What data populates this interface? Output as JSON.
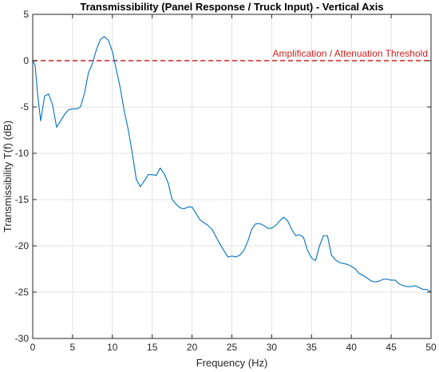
{
  "chart_data": {
    "type": "line",
    "title": "Transmissibility (Panel Response / Truck Input) - Vertical Axis",
    "xlabel": "Frequency (Hz)",
    "ylabel": "Transmissibility T(f) (dB)",
    "xlim": [
      0,
      50
    ],
    "ylim": [
      -30,
      5
    ],
    "xticks": [
      0,
      5,
      10,
      15,
      20,
      25,
      30,
      35,
      40,
      45,
      50
    ],
    "yticks": [
      -30,
      -25,
      -20,
      -15,
      -10,
      -5,
      0,
      5
    ],
    "grid": true,
    "series": [
      {
        "color": "#0072bd",
        "x": [
          0,
          0.3,
          0.6,
          1.0,
          1.5,
          2.0,
          2.5,
          3.0,
          3.5,
          4.0,
          4.5,
          5.0,
          5.5,
          6.0,
          6.5,
          7.0,
          7.5,
          8.0,
          8.5,
          9.0,
          9.5,
          10.0,
          10.5,
          11.0,
          11.5,
          12.0,
          12.5,
          13.0,
          13.5,
          14.0,
          14.5,
          15.0,
          15.5,
          16.0,
          16.5,
          17.0,
          17.5,
          18.0,
          18.5,
          19.0,
          19.5,
          20.0,
          20.5,
          21.0,
          21.5,
          22.0,
          22.5,
          23.0,
          23.5,
          24.0,
          24.5,
          25.0,
          25.5,
          26.0,
          26.5,
          27.0,
          27.5,
          28.0,
          28.5,
          29.0,
          29.5,
          30.0,
          30.5,
          31.0,
          31.5,
          32.0,
          32.5,
          33.0,
          33.5,
          34.0,
          34.5,
          35.0,
          35.5,
          36.0,
          36.5,
          37.0,
          37.5,
          38.0,
          38.5,
          39.0,
          39.5,
          40.0,
          40.5,
          41.0,
          41.5,
          42.0,
          42.5,
          43.0,
          43.5,
          44.0,
          44.5,
          45.0,
          45.5,
          46.0,
          46.5,
          47.0,
          47.5,
          48.0,
          48.5,
          49.0,
          49.5,
          50.0
        ],
        "y": [
          0,
          -0.5,
          -3.5,
          -6.5,
          -3.8,
          -3.6,
          -4.8,
          -7.2,
          -6.5,
          -5.8,
          -5.3,
          -5.2,
          -5.2,
          -5.0,
          -3.5,
          -1.3,
          -0.3,
          1.2,
          2.3,
          2.6,
          2.2,
          1.0,
          -1.0,
          -3.0,
          -5.5,
          -7.5,
          -10.0,
          -12.8,
          -13.6,
          -13.0,
          -12.3,
          -12.3,
          -12.4,
          -11.6,
          -12.2,
          -13.2,
          -15.0,
          -15.5,
          -15.9,
          -16.0,
          -15.8,
          -15.8,
          -16.5,
          -17.2,
          -17.5,
          -17.8,
          -18.2,
          -19.0,
          -19.8,
          -20.5,
          -21.2,
          -21.1,
          -21.2,
          -21.0,
          -20.5,
          -19.5,
          -18.2,
          -17.6,
          -17.6,
          -17.8,
          -18.1,
          -18.1,
          -17.8,
          -17.3,
          -16.9,
          -17.3,
          -18.2,
          -18.9,
          -18.8,
          -19.1,
          -20.5,
          -21.3,
          -21.6,
          -20.0,
          -18.9,
          -18.9,
          -21.0,
          -21.5,
          -21.8,
          -21.9,
          -22.0,
          -22.2,
          -22.5,
          -23.0,
          -23.2,
          -23.5,
          -23.8,
          -23.9,
          -23.8,
          -23.6,
          -23.6,
          -23.7,
          -23.7,
          -24.1,
          -24.3,
          -24.4,
          -24.4,
          -24.3,
          -24.5,
          -24.7,
          -24.7,
          -25.0
        ]
      }
    ],
    "reference_lines": [
      {
        "y": 0,
        "style": "dashed",
        "color": "#cc2222",
        "label": "Amplification / Attenuation Threshold"
      }
    ]
  }
}
